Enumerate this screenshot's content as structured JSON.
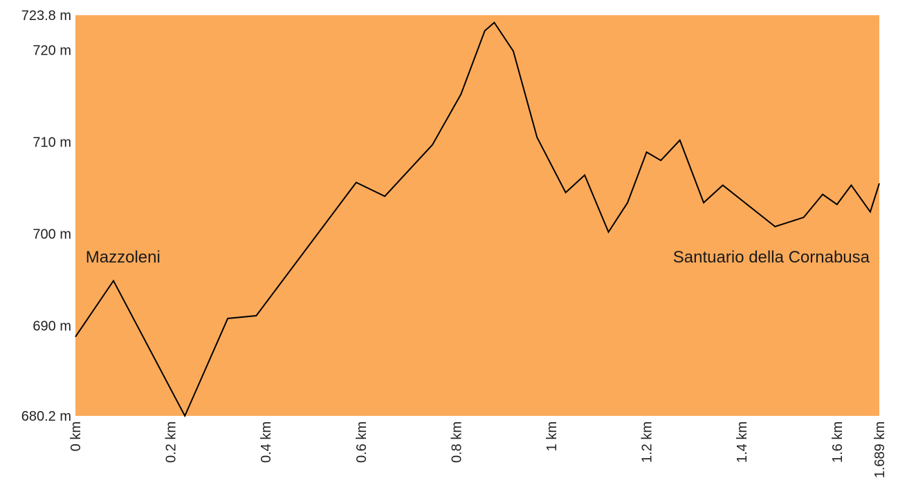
{
  "chart_data": {
    "type": "area",
    "title": "",
    "xlabel": "",
    "ylabel": "",
    "xlim": [
      0,
      1.689
    ],
    "ylim": [
      680.2,
      723.8
    ],
    "grid": false,
    "colors": {
      "fill": "#FBAA5A",
      "line": "#000000",
      "text": "#222222"
    },
    "x_ticks": [
      {
        "value": 0,
        "label": "0 km"
      },
      {
        "value": 0.2,
        "label": "0.2 km"
      },
      {
        "value": 0.4,
        "label": "0.4 km"
      },
      {
        "value": 0.6,
        "label": "0.6 km"
      },
      {
        "value": 0.8,
        "label": "0.8 km"
      },
      {
        "value": 1.0,
        "label": "1 km"
      },
      {
        "value": 1.2,
        "label": "1.2 km"
      },
      {
        "value": 1.4,
        "label": "1.4 km"
      },
      {
        "value": 1.6,
        "label": "1.6 km"
      },
      {
        "value": 1.689,
        "label": "1.689 km"
      }
    ],
    "y_ticks": [
      {
        "value": 680.2,
        "label": "680.2 m"
      },
      {
        "value": 690,
        "label": "690 m"
      },
      {
        "value": 700,
        "label": "700 m"
      },
      {
        "value": 710,
        "label": "710 m"
      },
      {
        "value": 720,
        "label": "720 m"
      },
      {
        "value": 723.8,
        "label": "723.8 m"
      }
    ],
    "series": [
      {
        "x": [
          0,
          0.08,
          0.23,
          0.32,
          0.38,
          0.59,
          0.65,
          0.75,
          0.81,
          0.86,
          0.88,
          0.92,
          0.97,
          1.03,
          1.07,
          1.12,
          1.16,
          1.2,
          1.23,
          1.27,
          1.32,
          1.36,
          1.47,
          1.53,
          1.57,
          1.6,
          1.63,
          1.67,
          1.689
        ],
        "y": [
          688.8,
          694.9,
          680.2,
          690.8,
          691.1,
          705.6,
          704.1,
          709.7,
          715.2,
          722.1,
          723.0,
          719.9,
          710.5,
          704.5,
          706.4,
          700.2,
          703.4,
          708.9,
          708.0,
          710.2,
          703.4,
          705.3,
          700.8,
          701.8,
          704.3,
          703.2,
          705.3,
          702.4,
          705.5
        ]
      }
    ],
    "annotations": [
      {
        "text": "Mazzoleni",
        "x": 0.02,
        "y": 697.8
      },
      {
        "text": "Santuario della Cornabusa",
        "x": 1.689,
        "y": 697.8
      }
    ]
  }
}
